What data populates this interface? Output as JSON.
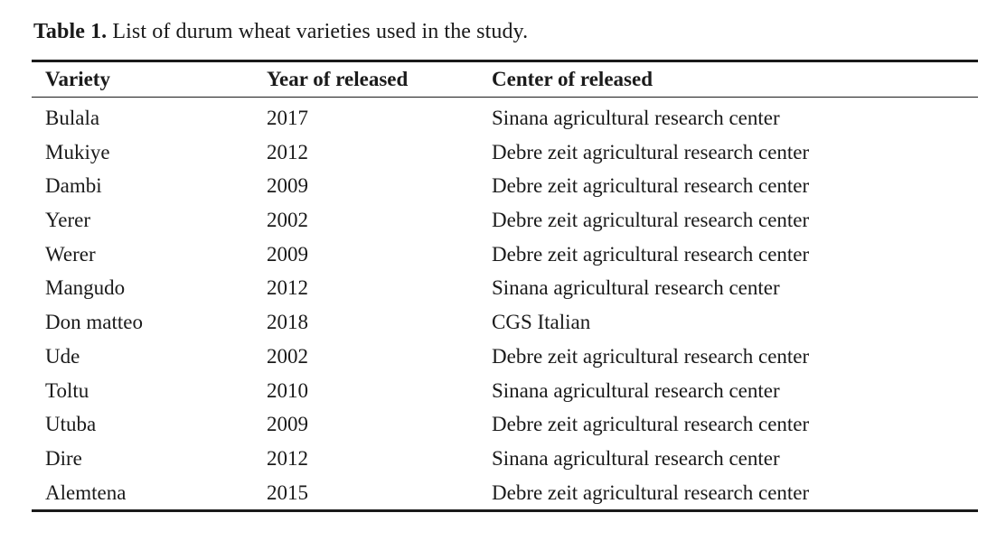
{
  "caption": {
    "label": "Table 1.",
    "text": " List of durum wheat varieties used in the study."
  },
  "table": {
    "columns": [
      "Variety",
      "Year of released",
      "Center of released"
    ],
    "rows": [
      [
        "Bulala",
        "2017",
        "Sinana agricultural research center"
      ],
      [
        "Mukiye",
        "2012",
        "Debre zeit agricultural research center"
      ],
      [
        "Dambi",
        "2009",
        "Debre zeit agricultural research center"
      ],
      [
        "Yerer",
        "2002",
        "Debre zeit agricultural research center"
      ],
      [
        "Werer",
        "2009",
        "Debre zeit agricultural research center"
      ],
      [
        "Mangudo",
        "2012",
        "Sinana agricultural research center"
      ],
      [
        "Don matteo",
        "2018",
        "CGS Italian"
      ],
      [
        "Ude",
        "2002",
        "Debre zeit agricultural research center"
      ],
      [
        "Toltu",
        "2010",
        "Sinana agricultural research center"
      ],
      [
        "Utuba",
        "2009",
        "Debre zeit agricultural research center"
      ],
      [
        "Dire",
        "2012",
        "Sinana agricultural research center"
      ],
      [
        "Alemtena",
        "2015",
        "Debre zeit agricultural research center"
      ]
    ]
  }
}
